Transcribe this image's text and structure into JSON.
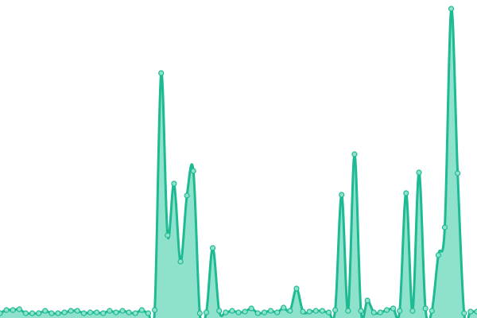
{
  "chart_data": {
    "type": "area",
    "values": [
      6,
      10,
      10,
      11,
      6,
      6,
      6,
      9,
      6,
      6,
      7,
      9,
      9,
      6,
      7,
      7,
      6,
      9,
      7,
      9,
      7,
      6,
      10,
      6,
      10,
      308,
      104,
      169,
      71,
      154,
      185,
      6,
      7,
      88,
      9,
      7,
      9,
      7,
      8,
      12,
      6,
      7,
      9,
      7,
      13,
      9,
      37,
      8,
      8,
      9,
      9,
      7,
      10,
      155,
      9,
      206,
      9,
      22,
      7,
      7,
      10,
      12,
      9,
      157,
      9,
      183,
      12,
      9,
      79,
      114,
      389,
      182,
      6,
      8,
      8
    ],
    "color": "#1dba93",
    "fill": "#8ee2cc",
    "ylim": [
      0,
      400
    ]
  }
}
